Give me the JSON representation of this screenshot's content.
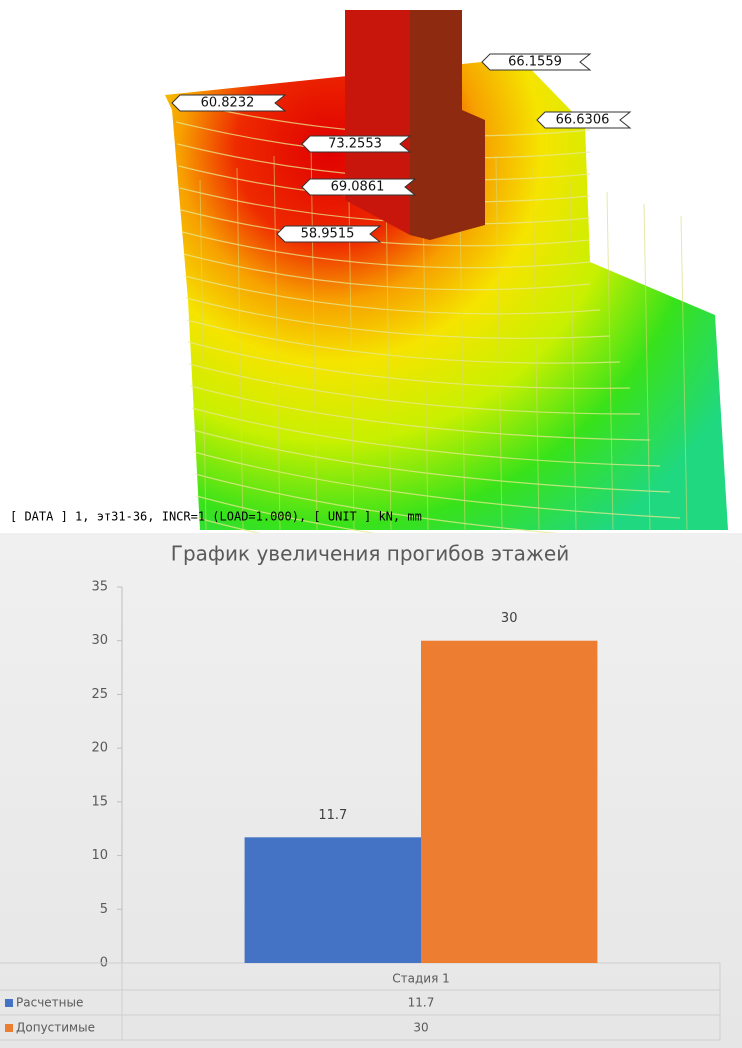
{
  "model_view": {
    "annotations": [
      "66.1559",
      "60.8232",
      "66.6306",
      "73.2553",
      "69.0861",
      "58.9515"
    ],
    "caption": "[ DATA ] 1, эт31-36, INCR=1 (LOAD=1.000),  [ UNIT ]  kN, mm"
  },
  "chart_data": {
    "type": "bar",
    "title": "График увеличения прогибов этажей",
    "categories": [
      "Стадия 1"
    ],
    "series": [
      {
        "name": "Расчетные",
        "color": "#4472c4",
        "values": [
          11.7
        ]
      },
      {
        "name": "Допустимые",
        "color": "#ed7d31",
        "values": [
          30
        ]
      }
    ],
    "ylim": [
      0,
      35
    ],
    "yticks": [
      0,
      5,
      10,
      15,
      20,
      25,
      30,
      35
    ],
    "grid": false
  }
}
